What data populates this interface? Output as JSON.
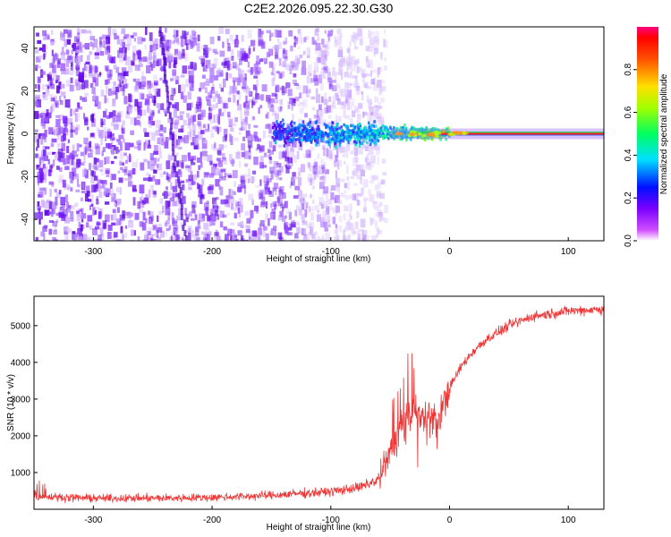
{
  "title": "C2E2.2026.095.22.30.G30",
  "colors": {
    "snr_line": "#f03535",
    "spectrogram_low": "#6a0df0",
    "spectrogram_peak": "#ff2020"
  },
  "chart_data": [
    {
      "type": "heatmap",
      "name": "spectrogram",
      "xlabel": "Height of straight line (km)",
      "ylabel": "Frequency (Hz)",
      "xlim": [
        -350,
        130
      ],
      "ylim": [
        -50,
        50
      ],
      "xticks": [
        -300,
        -200,
        -100,
        0,
        100
      ],
      "yticks": [
        -40,
        -20,
        0,
        20,
        40
      ],
      "colorbar": {
        "label": "Normalized spectral amplitude",
        "range": [
          0,
          1
        ],
        "ticks": [
          0.0,
          0.2,
          0.4,
          0.6,
          0.8
        ]
      },
      "features": {
        "noise_region_km": [
          -350,
          -55
        ],
        "faint_noise_edge_km": -55,
        "carrier_onset_km": -150,
        "strong_carrier_from_km": 0,
        "carrier_frequency_hz": 0
      }
    },
    {
      "type": "line",
      "name": "snr",
      "xlabel": "Height of straight line (km)",
      "ylabel": "SNR (10 * v/v)",
      "xlim": [
        -350,
        130
      ],
      "ylim": [
        0,
        5800
      ],
      "xticks": [
        -300,
        -200,
        -100,
        0,
        100
      ],
      "yticks": [
        1000,
        2000,
        3000,
        4000,
        5000
      ],
      "series": [
        {
          "name": "SNR",
          "x": [
            -350,
            -300,
            -250,
            -200,
            -150,
            -100,
            -75,
            -60,
            -50,
            -40,
            -30,
            -20,
            -10,
            0,
            10,
            20,
            30,
            50,
            70,
            100,
            130
          ],
          "y": [
            350,
            300,
            300,
            320,
            380,
            480,
            600,
            800,
            1500,
            2300,
            2700,
            2600,
            2400,
            3300,
            3900,
            4300,
            4600,
            5000,
            5250,
            5400,
            5450
          ]
        }
      ]
    }
  ]
}
